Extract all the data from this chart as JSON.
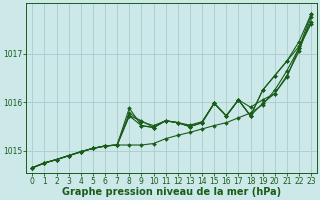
{
  "bg_color": "#cce8e8",
  "grid_color": "#aacccc",
  "line_color": "#1a5c1a",
  "marker_color": "#1a5c1a",
  "xlabel": "Graphe pression niveau de la mer (hPa)",
  "xlabel_fontsize": 7,
  "xlim": [
    -0.5,
    23.5
  ],
  "ylim": [
    1014.55,
    1018.05
  ],
  "yticks": [
    1015,
    1016,
    1017
  ],
  "xticks": [
    0,
    1,
    2,
    3,
    4,
    5,
    6,
    7,
    8,
    9,
    10,
    11,
    12,
    13,
    14,
    15,
    16,
    17,
    18,
    19,
    20,
    21,
    22,
    23
  ],
  "series": [
    [
      1014.65,
      1014.75,
      1014.82,
      1014.9,
      1014.98,
      1015.05,
      1015.1,
      1015.12,
      1015.78,
      1015.6,
      1015.52,
      1015.62,
      1015.58,
      1015.53,
      1015.6,
      1015.98,
      1015.72,
      1016.05,
      1015.9,
      1016.05,
      1016.18,
      1016.55,
      1017.05,
      1017.75
    ],
    [
      1014.65,
      1014.75,
      1014.82,
      1014.9,
      1014.98,
      1015.05,
      1015.1,
      1015.12,
      1015.88,
      1015.52,
      1015.48,
      1015.62,
      1015.58,
      1015.5,
      1015.58,
      1015.98,
      1015.72,
      1016.05,
      1015.72,
      1016.25,
      1016.55,
      1016.85,
      1017.15,
      1017.65
    ],
    [
      1014.65,
      1014.75,
      1014.82,
      1014.9,
      1014.98,
      1015.05,
      1015.1,
      1015.12,
      1015.72,
      1015.62,
      1015.48,
      1015.62,
      1015.58,
      1015.5,
      1015.58,
      1015.98,
      1015.72,
      1016.05,
      1015.72,
      1016.25,
      1016.55,
      1016.85,
      1017.25,
      1017.82
    ],
    [
      1014.65,
      1014.75,
      1014.82,
      1014.9,
      1014.98,
      1015.05,
      1015.1,
      1015.12,
      1015.72,
      1015.52,
      1015.48,
      1015.62,
      1015.58,
      1015.5,
      1015.58,
      1015.98,
      1015.72,
      1016.05,
      1015.72,
      1015.98,
      1016.18,
      1016.52,
      1017.12,
      1017.62
    ],
    [
      1014.65,
      1014.75,
      1014.82,
      1014.9,
      1014.98,
      1015.05,
      1015.1,
      1015.12,
      1015.12,
      1015.12,
      1015.15,
      1015.25,
      1015.32,
      1015.38,
      1015.45,
      1015.52,
      1015.58,
      1015.68,
      1015.78,
      1015.95,
      1016.25,
      1016.65,
      1017.12,
      1017.82
    ]
  ]
}
